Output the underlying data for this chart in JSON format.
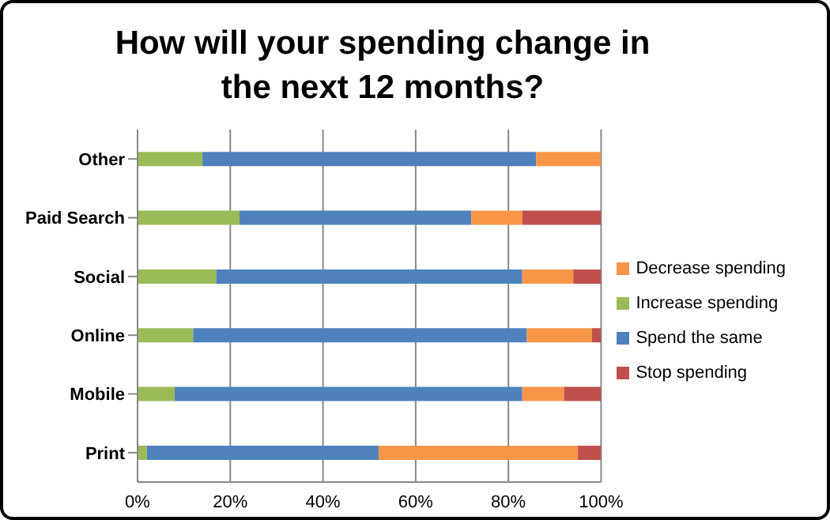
{
  "chart_data": {
    "type": "bar",
    "orientation": "horizontal",
    "stacked": true,
    "title": "How will your spending change in the next 12 months?",
    "categories": [
      "Other",
      "Paid Search",
      "Social",
      "Online",
      "Mobile",
      "Print"
    ],
    "series": [
      {
        "name": "Increase spending",
        "color": "#9bbb59",
        "values": [
          14,
          22,
          17,
          12,
          8,
          2
        ]
      },
      {
        "name": "Spend the same",
        "color": "#4f81bd",
        "values": [
          72,
          50,
          66,
          72,
          75,
          50
        ]
      },
      {
        "name": "Decrease spending",
        "color": "#f79646",
        "values": [
          14,
          11,
          11,
          14,
          9,
          43
        ]
      },
      {
        "name": "Stop spending",
        "color": "#c0504d",
        "values": [
          0,
          17,
          6,
          2,
          8,
          5
        ]
      }
    ],
    "xlim": [
      0,
      100
    ],
    "xticks": [
      {
        "value": 0,
        "label": "0%"
      },
      {
        "value": 20,
        "label": "20%"
      },
      {
        "value": 40,
        "label": "40%"
      },
      {
        "value": 60,
        "label": "60%"
      },
      {
        "value": 80,
        "label": "80%"
      },
      {
        "value": 100,
        "label": "100%"
      }
    ],
    "grid": "x",
    "legend": "right"
  }
}
